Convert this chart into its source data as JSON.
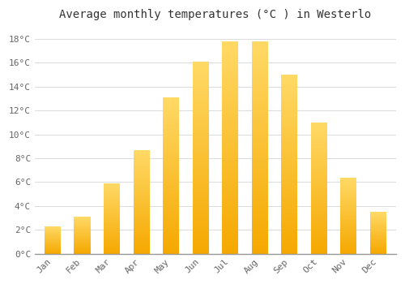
{
  "title": "Average monthly temperatures (°C ) in Westerlo",
  "months": [
    "Jan",
    "Feb",
    "Mar",
    "Apr",
    "May",
    "Jun",
    "Jul",
    "Aug",
    "Sep",
    "Oct",
    "Nov",
    "Dec"
  ],
  "values": [
    2.3,
    3.1,
    5.9,
    8.7,
    13.1,
    16.1,
    17.8,
    17.8,
    15.0,
    11.0,
    6.4,
    3.5
  ],
  "bar_color_bottom": "#F5A800",
  "bar_color_top": "#FFD966",
  "ylim": [
    0,
    19
  ],
  "yticks": [
    0,
    2,
    4,
    6,
    8,
    10,
    12,
    14,
    16,
    18
  ],
  "ytick_labels": [
    "0°C",
    "2°C",
    "4°C",
    "6°C",
    "8°C",
    "10°C",
    "12°C",
    "14°C",
    "16°C",
    "18°C"
  ],
  "background_color": "#FFFFFF",
  "grid_color": "#DDDDDD",
  "title_fontsize": 10,
  "tick_fontsize": 8,
  "figure_bg": "#FFFFFF",
  "bar_width": 0.55
}
